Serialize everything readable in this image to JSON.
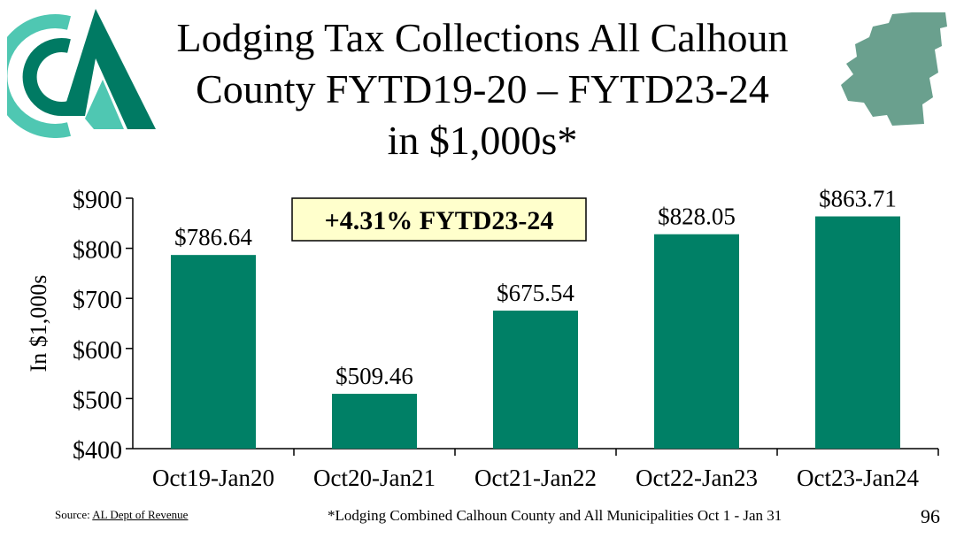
{
  "slide": {
    "title_lines": [
      "Lodging Tax Collections All Calhoun",
      "County FYTD19-20 – FYTD23-24",
      "in $1,000s*"
    ],
    "source_label": "Source:",
    "source_link": "AL Dept of Revenue",
    "footnote": "*Lodging Combined Calhoun County and All Municipalities Oct 1 - Jan 31",
    "page_number": "96"
  },
  "colors": {
    "bar": "#008066",
    "callout_bg": "#ffffcc",
    "logo_dark": "#007a63",
    "logo_light": "#4fc7b2",
    "map": "#6aa08e"
  },
  "chart_data": {
    "type": "bar",
    "categories": [
      "Oct19-Jan20",
      "Oct20-Jan21",
      "Oct21-Jan22",
      "Oct22-Jan23",
      "Oct23-Jan24"
    ],
    "values": [
      786.64,
      509.46,
      675.54,
      828.05,
      863.71
    ],
    "data_labels": [
      "$786.64",
      "$509.46",
      "$675.54",
      "$828.05",
      "$863.71"
    ],
    "ylabel": "In $1,000s",
    "ylim": [
      400,
      900
    ],
    "yticks": [
      400,
      500,
      600,
      700,
      800,
      900
    ],
    "ytick_labels": [
      "$400",
      "$500",
      "$600",
      "$700",
      "$800",
      "$900"
    ],
    "grid": false,
    "annotation": "+4.31% FYTD23-24"
  }
}
